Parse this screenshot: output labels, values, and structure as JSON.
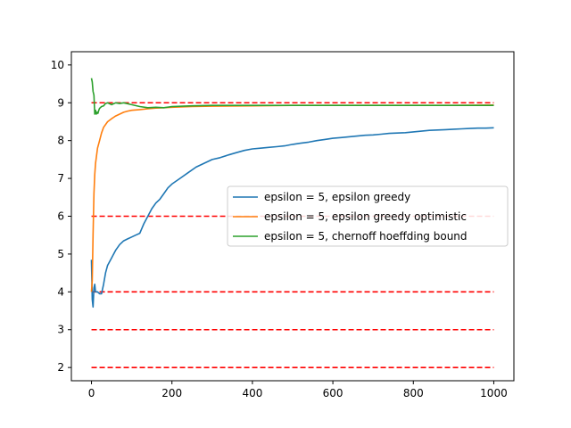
{
  "chart_data": {
    "type": "line",
    "title": "",
    "xlabel": "",
    "ylabel": "",
    "xlim": [
      -50,
      1050
    ],
    "ylim": [
      1.65,
      10.35
    ],
    "xticks": [
      0,
      200,
      400,
      600,
      800,
      1000
    ],
    "yticks": [
      2,
      3,
      4,
      5,
      6,
      7,
      8,
      9,
      10
    ],
    "grid": false,
    "legend_position": "center-right",
    "reference_lines": {
      "color": "#ff0000",
      "style": "dashed",
      "y": [
        2,
        3,
        4,
        6,
        9
      ]
    },
    "series": [
      {
        "name": "epsilon = 5, epsilon greedy",
        "color": "#1f77b4",
        "x": [
          0,
          2,
          4,
          6,
          8,
          10,
          15,
          20,
          25,
          30,
          35,
          40,
          50,
          60,
          70,
          80,
          90,
          100,
          110,
          120,
          130,
          140,
          150,
          160,
          170,
          180,
          190,
          200,
          220,
          240,
          260,
          280,
          300,
          320,
          340,
          360,
          380,
          400,
          420,
          440,
          460,
          480,
          500,
          520,
          540,
          560,
          580,
          600,
          620,
          640,
          660,
          680,
          700,
          720,
          740,
          760,
          780,
          800,
          820,
          840,
          860,
          880,
          900,
          920,
          940,
          960,
          980,
          1000
        ],
        "y": [
          4.85,
          3.8,
          3.6,
          4.1,
          4.2,
          4.0,
          4.0,
          3.95,
          3.95,
          4.2,
          4.5,
          4.7,
          4.9,
          5.1,
          5.25,
          5.35,
          5.4,
          5.45,
          5.5,
          5.55,
          5.8,
          6.0,
          6.2,
          6.35,
          6.45,
          6.6,
          6.75,
          6.85,
          7.0,
          7.15,
          7.3,
          7.4,
          7.5,
          7.55,
          7.62,
          7.68,
          7.74,
          7.78,
          7.8,
          7.82,
          7.84,
          7.86,
          7.9,
          7.93,
          7.96,
          8.0,
          8.03,
          8.06,
          8.08,
          8.1,
          8.12,
          8.14,
          8.15,
          8.17,
          8.19,
          8.2,
          8.21,
          8.23,
          8.25,
          8.27,
          8.28,
          8.29,
          8.3,
          8.31,
          8.32,
          8.33,
          8.33,
          8.34
        ]
      },
      {
        "name": "epsilon = 5, epsilon greedy optimistic",
        "color": "#ff7f0e",
        "x": [
          0,
          2,
          4,
          6,
          8,
          10,
          15,
          20,
          25,
          30,
          40,
          50,
          60,
          70,
          80,
          90,
          100,
          120,
          140,
          160,
          180,
          200,
          250,
          300,
          400,
          500,
          600,
          700,
          800,
          900,
          1000
        ],
        "y": [
          4.0,
          4.3,
          5.5,
          6.6,
          7.1,
          7.4,
          7.8,
          8.0,
          8.2,
          8.35,
          8.5,
          8.58,
          8.65,
          8.7,
          8.75,
          8.78,
          8.8,
          8.82,
          8.84,
          8.86,
          8.87,
          8.88,
          8.9,
          8.91,
          8.92,
          8.93,
          8.93,
          8.93,
          8.93,
          8.93,
          8.94
        ]
      },
      {
        "name": "epsilon = 5, chernoff hoeffding bound",
        "color": "#2ca02c",
        "x": [
          0,
          2,
          4,
          6,
          8,
          10,
          12,
          14,
          16,
          18,
          20,
          25,
          30,
          35,
          40,
          50,
          60,
          70,
          80,
          100,
          120,
          140,
          160,
          180,
          200,
          250,
          300,
          400,
          500,
          600,
          700,
          800,
          900,
          1000
        ],
        "y": [
          9.65,
          9.55,
          9.3,
          9.2,
          8.7,
          8.8,
          8.7,
          8.75,
          8.72,
          8.8,
          8.85,
          8.9,
          8.92,
          8.98,
          9.0,
          8.95,
          9.0,
          8.98,
          9.0,
          8.95,
          8.9,
          8.87,
          8.88,
          8.87,
          8.9,
          8.92,
          8.93,
          8.93,
          8.93,
          8.93,
          8.93,
          8.93,
          8.93,
          8.93
        ]
      }
    ]
  }
}
